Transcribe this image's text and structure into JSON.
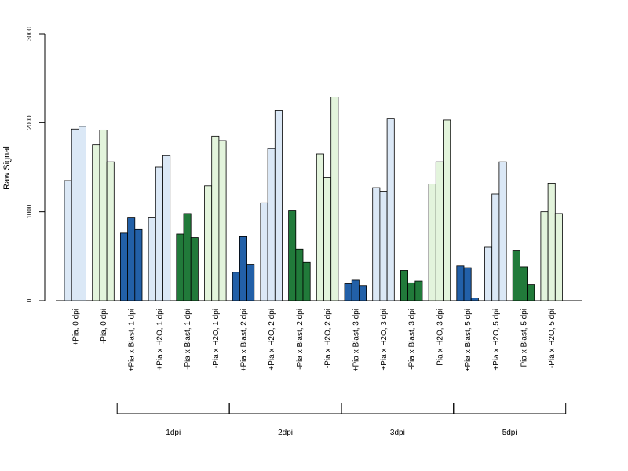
{
  "chart_data": {
    "type": "bar",
    "ylabel": "Raw Signal",
    "ylim": [
      0,
      3000
    ],
    "yticks": [
      0,
      1000,
      2000,
      3000
    ],
    "grid": false,
    "legend": "none",
    "categories": [
      "+Pia, 0 dpi",
      "-Pia, 0 dpi",
      "+Pia x Blast, 1 dpi",
      "+Pia x H2O, 1 dpi",
      "-Pia x Blast, 1 dpi",
      "-Pia x H2O, 1 dpi",
      "+Pia x Blast, 2 dpi",
      "+Pia x H2O, 2 dpi",
      "-Pia x Blast, 2 dpi",
      "-Pia x H2O, 2 dpi",
      "+Pia x Blast, 3 dpi",
      "+Pia x H2O, 3 dpi",
      "-Pia x Blast, 3 dpi",
      "-Pia x H2O, 3 dpi",
      "+Pia x Blast, 5 dpi",
      "+Pia x H2O, 5 dpi",
      "-Pia x Blast, 5 dpi",
      "-Pia x H2O, 5 dpi"
    ],
    "replicates": [
      [
        1350,
        1930,
        1960
      ],
      [
        1750,
        1920,
        1560
      ],
      [
        760,
        930,
        800
      ],
      [
        930,
        1500,
        1630
      ],
      [
        750,
        980,
        710
      ],
      [
        1290,
        1850,
        1800
      ],
      [
        320,
        720,
        410
      ],
      [
        1100,
        1710,
        2140
      ],
      [
        1010,
        580,
        430
      ],
      [
        1650,
        1380,
        2290
      ],
      [
        190,
        230,
        170
      ],
      [
        1270,
        1230,
        2050
      ],
      [
        340,
        200,
        220
      ],
      [
        1310,
        1560,
        2030
      ],
      [
        390,
        370,
        30
      ],
      [
        600,
        1200,
        1560
      ],
      [
        560,
        380,
        180
      ],
      [
        1000,
        1320,
        980
      ]
    ],
    "colors": {
      "plus_blast": "#2260a8",
      "plus_h2o": "#dbe8f6",
      "minus_blast": "#217a3a",
      "minus_h2o": "#e3f4dc"
    },
    "category_color_keys": [
      "plus_h2o",
      "minus_h2o",
      "plus_blast",
      "plus_h2o",
      "minus_blast",
      "minus_h2o",
      "plus_blast",
      "plus_h2o",
      "minus_blast",
      "minus_h2o",
      "plus_blast",
      "plus_h2o",
      "minus_blast",
      "minus_h2o",
      "plus_blast",
      "plus_h2o",
      "minus_blast",
      "minus_h2o"
    ],
    "groups": [
      {
        "label": "1dpi",
        "first": 2,
        "last": 5
      },
      {
        "label": "2dpi",
        "first": 6,
        "last": 9
      },
      {
        "label": "3dpi",
        "first": 10,
        "last": 13
      },
      {
        "label": "5dpi",
        "first": 14,
        "last": 17
      }
    ]
  }
}
